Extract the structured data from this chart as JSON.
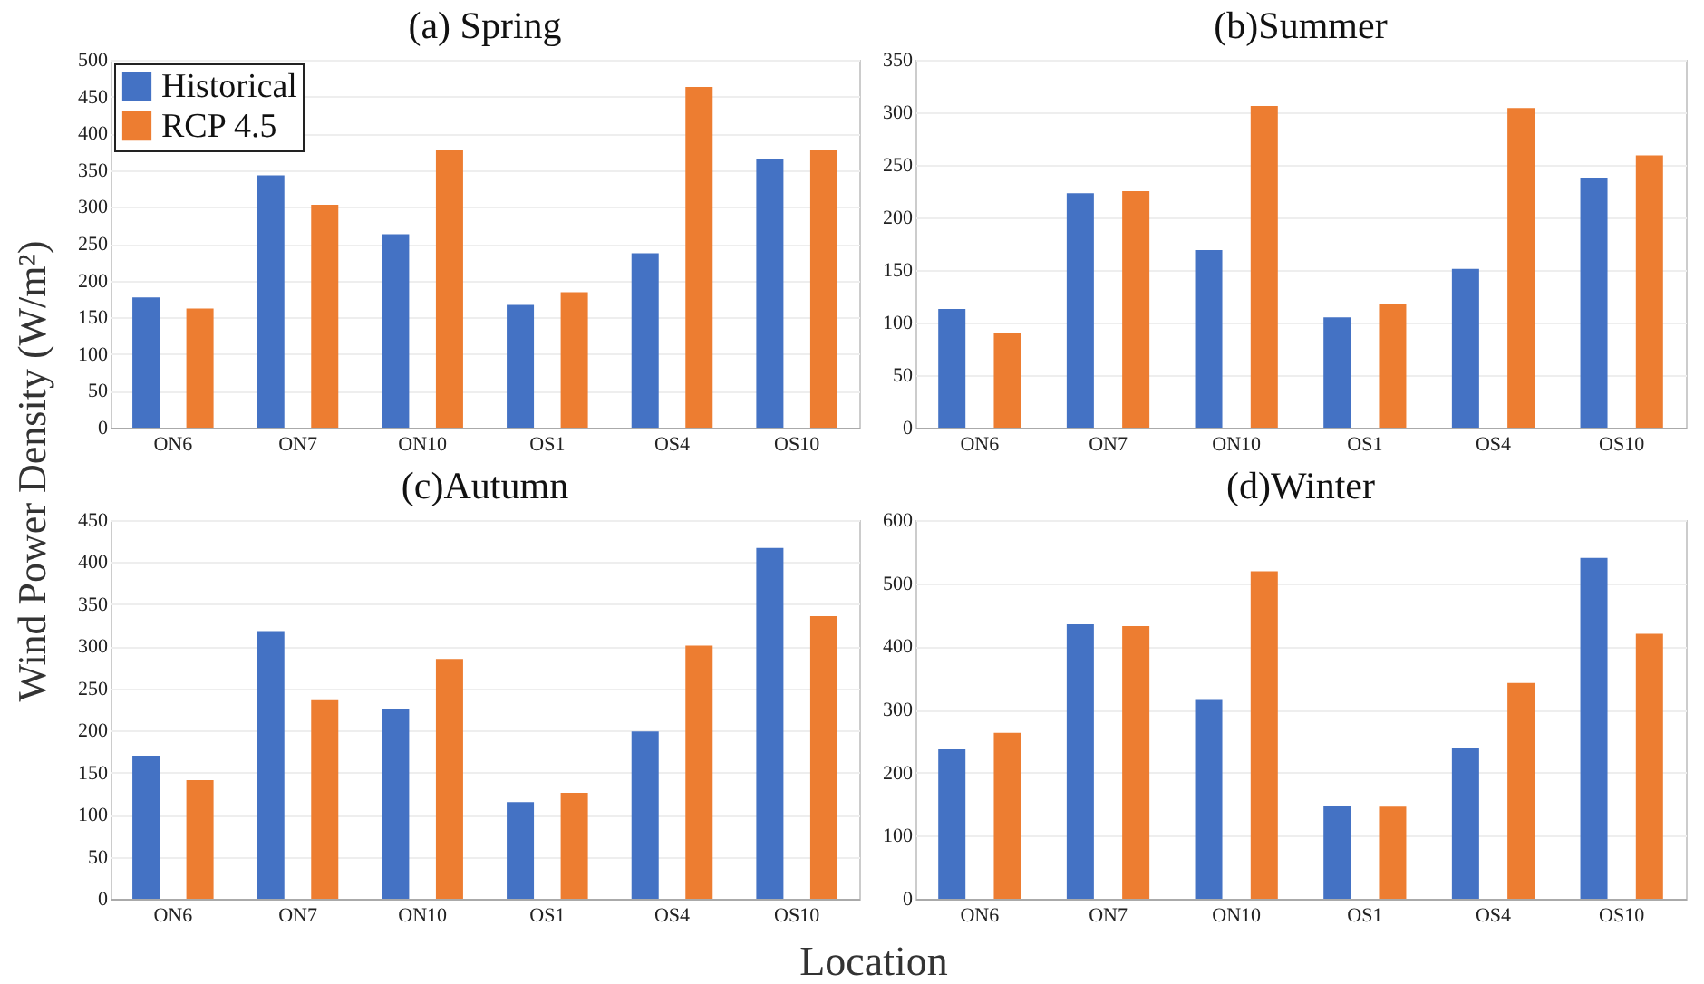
{
  "chart_data": [
    {
      "type": "bar",
      "title": "(a) Spring",
      "ylabel": "Wind Power Density (W/m²)",
      "categories": [
        "ON6",
        "ON7",
        "ON10",
        "OS1",
        "OS4",
        "OS10"
      ],
      "ylim": [
        0,
        500
      ],
      "yticks": [
        0,
        50,
        100,
        150,
        200,
        250,
        300,
        350,
        400,
        450,
        500
      ],
      "grid": "y",
      "legend": "top left",
      "series": [
        {
          "name": "Historical",
          "color": "#4472c4",
          "values": [
            177,
            343,
            263,
            167,
            237,
            365
          ]
        },
        {
          "name": "RCP 4.5",
          "color": "#ed7d31",
          "values": [
            162,
            303,
            377,
            184,
            463,
            377
          ]
        }
      ]
    },
    {
      "type": "bar",
      "title": "(b)Summer",
      "categories": [
        "ON6",
        "ON7",
        "ON10",
        "OS1",
        "OS4",
        "OS10"
      ],
      "ylim": [
        0,
        350
      ],
      "yticks": [
        0,
        50,
        100,
        150,
        200,
        250,
        300,
        350
      ],
      "grid": "y",
      "series": [
        {
          "color": "#4472c4",
          "values": [
            113,
            223,
            169,
            105,
            151,
            237
          ]
        },
        {
          "color": "#ed7d31",
          "values": [
            90,
            225,
            306,
            118,
            304,
            259
          ]
        }
      ]
    },
    {
      "type": "bar",
      "title": "(c)Autumn",
      "xlabel": "Location",
      "categories": [
        "ON6",
        "ON7",
        "ON10",
        "OS1",
        "OS4",
        "OS10"
      ],
      "ylim": [
        0,
        450
      ],
      "yticks": [
        0,
        50,
        100,
        150,
        200,
        250,
        300,
        350,
        400,
        450
      ],
      "grid": "y",
      "series": [
        {
          "color": "#4472c4",
          "values": [
            170,
            318,
            225,
            115,
            199,
            417
          ]
        },
        {
          "color": "#ed7d31",
          "values": [
            141,
            236,
            285,
            126,
            301,
            336
          ]
        }
      ]
    },
    {
      "type": "bar",
      "title": "(d)Winter",
      "categories": [
        "ON6",
        "ON7",
        "ON10",
        "OS1",
        "OS4",
        "OS10"
      ],
      "ylim": [
        0,
        600
      ],
      "yticks": [
        0,
        100,
        200,
        300,
        400,
        500,
        600
      ],
      "grid": "y",
      "series": [
        {
          "color": "#4472c4",
          "values": [
            237,
            435,
            315,
            148,
            239,
            540
          ]
        },
        {
          "color": "#ed7d31",
          "values": [
            263,
            432,
            519,
            146,
            342,
            420
          ]
        }
      ]
    }
  ]
}
